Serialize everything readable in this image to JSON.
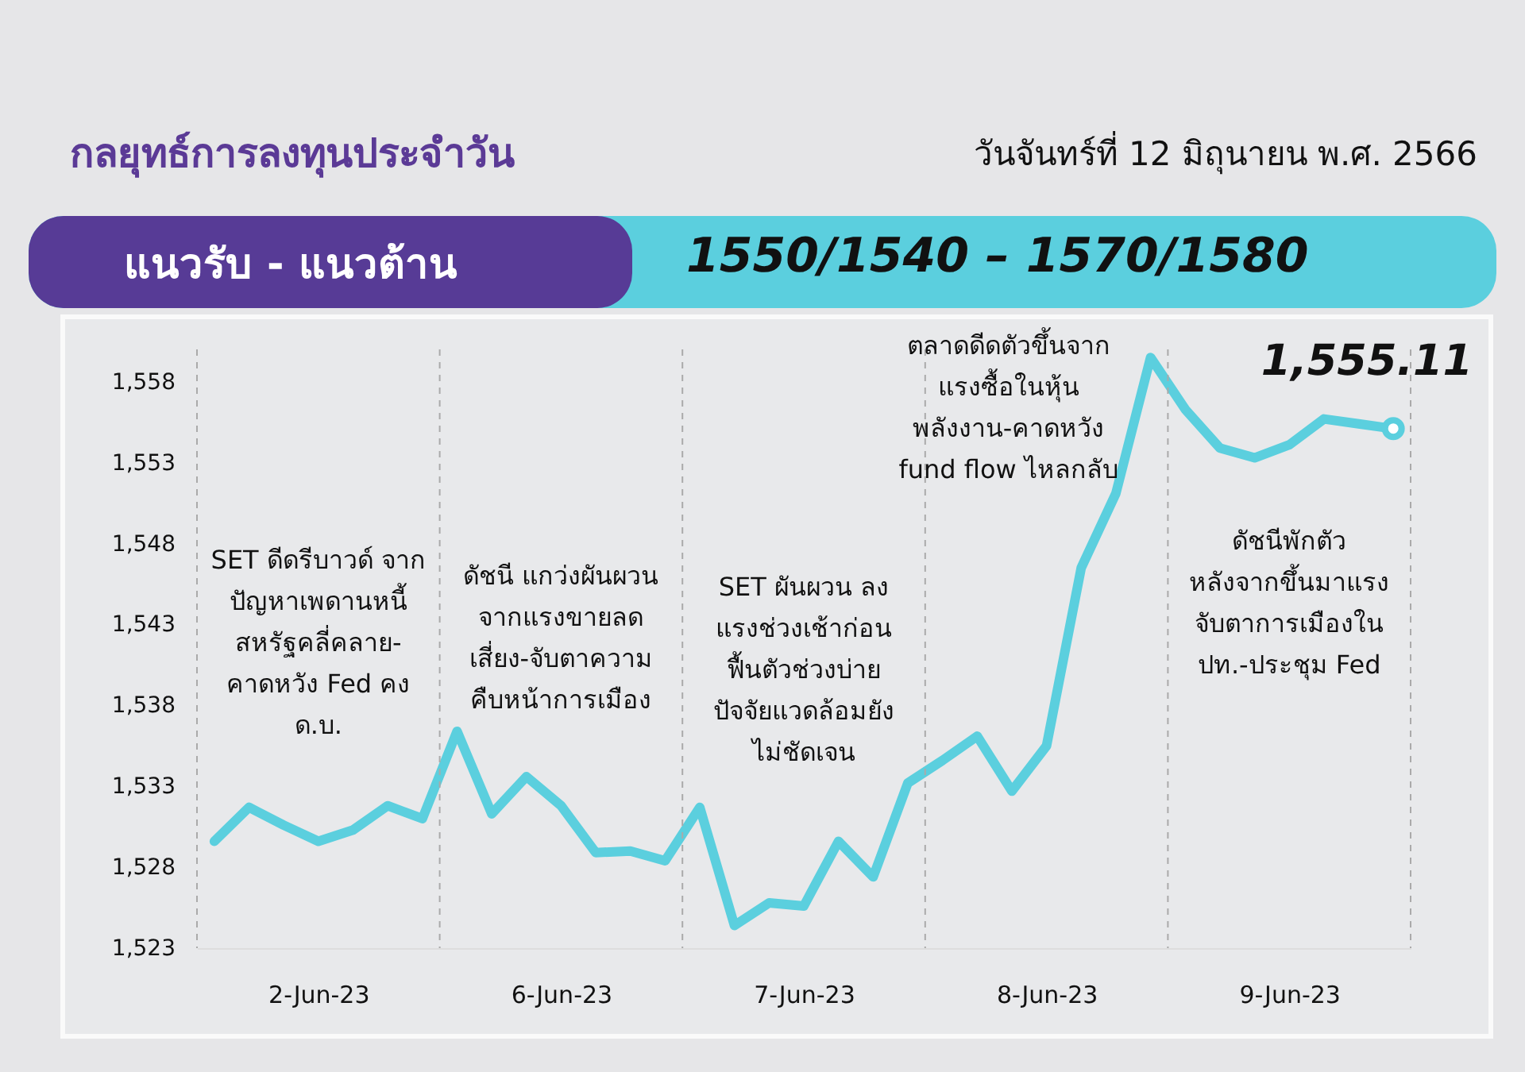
{
  "chart_data": {
    "type": "line",
    "title": "กลยุทธ์การลงทุนประจำวัน",
    "subtitle": "วันจันทร์ที่ 12 มิถุนายน พ.ศ. 2566",
    "annotations": [
      "แนวรับ - แนวต้าน",
      "1550/1540 – 1570/1580",
      "SET ดีดรีบาวด์ จาก\nปัญหาเพดานหนี้\nสหรัฐคลี่คลาย-\nคาดหวัง Fed คง\nด.บ.",
      "ดัชนี แกว่งผันผวน\nจากแรงขายลด\nเสี่ยง-จับตาความ\nคืบหน้าการเมือง",
      "SET ผันผวน ลง\nแรงช่วงเช้าก่อน\nฟื้นตัวช่วงบ่าย\nปัจจัยแวดล้อมยัง\nไม่ชัดเจน",
      "ตลาดดีดตัวขึ้นจาก\nแรงซื้อในหุ้น\nพลังงาน-คาดหวัง\nfund flow ไหลกลับ",
      "ดัชนีพักตัว\nหลังจากขึ้นมาแรง\nจับตาการเมืองใน\nปท.-ประชุม Fed",
      {
        "text": "1,555.11",
        "y": 1555.11
      }
    ],
    "categories": [
      null,
      null,
      null,
      "2-Jun-23",
      null,
      null,
      null,
      null,
      null,
      null,
      "6-Jun-23",
      null,
      null,
      null,
      null,
      null,
      null,
      "7-Jun-23",
      null,
      null,
      null,
      null,
      null,
      null,
      "8-Jun-23",
      null,
      null,
      null,
      null,
      null,
      null,
      "9-Jun-23",
      null,
      null,
      null
    ],
    "series": [
      {
        "color": "#5bcfde",
        "values": [
          1529.6,
          1531.7,
          1530.6,
          1529.6,
          1530.3,
          1531.8,
          1531.0,
          1536.4,
          1531.3,
          1533.6,
          1531.8,
          1528.9,
          1529.0,
          1528.4,
          1531.7,
          1524.4,
          1525.8,
          1525.6,
          1529.6,
          1527.4,
          1533.2,
          1534.6,
          1536.1,
          1532.7,
          1535.5,
          1546.5,
          1551.1,
          1559.5,
          1556.3,
          1553.9,
          1553.3,
          1554.1,
          1555.7,
          1555.4,
          1555.1
        ]
      }
    ],
    "ylim": [
      1523,
      1560
    ],
    "yticks": [
      {
        "value": 1523,
        "label": "1,523"
      },
      {
        "value": 1528,
        "label": "1,528"
      },
      {
        "value": 1533,
        "label": "1,533"
      },
      {
        "value": 1538,
        "label": "1,538"
      },
      {
        "value": 1543,
        "label": "1,543"
      },
      {
        "value": 1548,
        "label": "1,548"
      },
      {
        "value": 1553,
        "label": "1,553"
      },
      {
        "value": 1558,
        "label": "1,558"
      }
    ],
    "marker": "none",
    "line_style": "solid"
  }
}
